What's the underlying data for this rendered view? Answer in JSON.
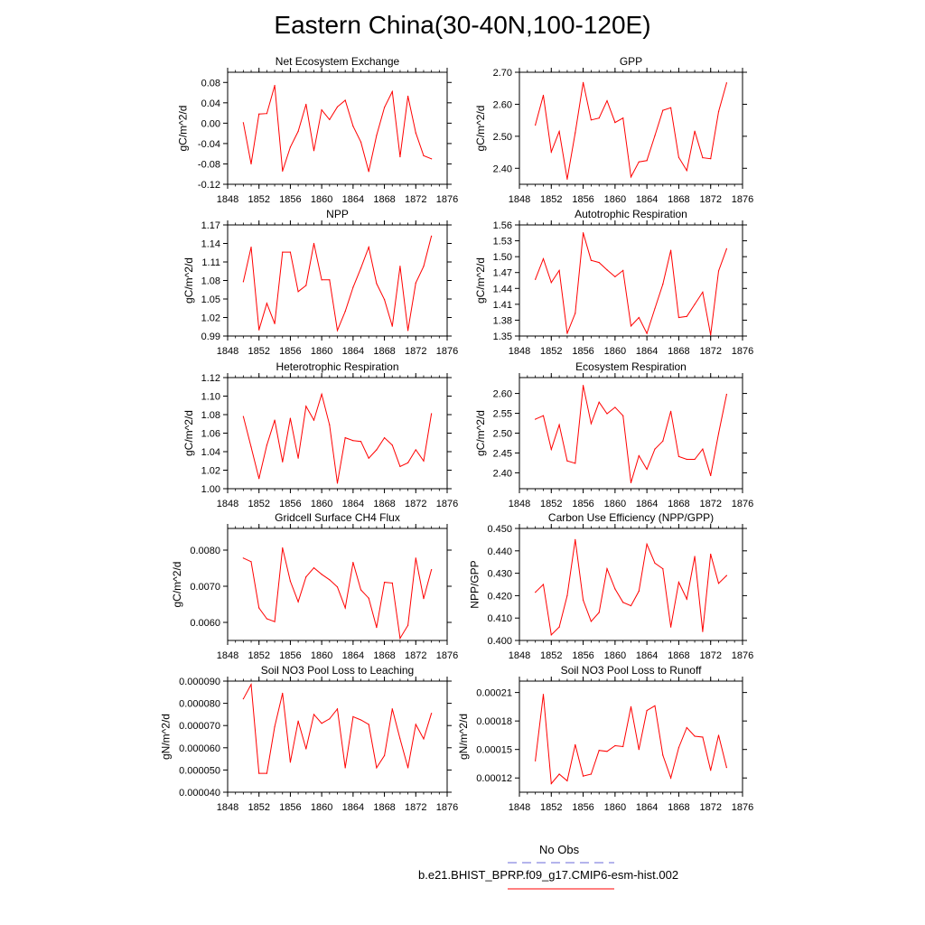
{
  "title": "Eastern China(30-40N,100-120E)",
  "colors": {
    "model": "#ff0000",
    "obs": "#6a6ad8",
    "axis": "#000000"
  },
  "legend": {
    "obs_label": "No Obs",
    "model_label": "b.e21.BHIST_BPRP.f09_g17.CMIP6-esm-hist.002"
  },
  "chart_data": [
    {
      "type": "line",
      "title": "Net Ecosystem Exchange",
      "ylabel": "gC/m^2/d",
      "xlim": [
        1848,
        1876
      ],
      "xticks": [
        "1848",
        "1852",
        "1856",
        "1860",
        "1864",
        "1868",
        "1872",
        "1876"
      ],
      "ylim": [
        -0.12,
        0.1
      ],
      "yticks": [
        "-0.12",
        "-0.08",
        "-0.04",
        "0.00",
        "0.04",
        "0.08"
      ],
      "ytick_values": [
        -0.12,
        -0.08,
        -0.04,
        0,
        0.04,
        0.08
      ],
      "x": [
        1850,
        1851,
        1852,
        1853,
        1854,
        1855,
        1856,
        1857,
        1858,
        1859,
        1860,
        1861,
        1862,
        1863,
        1864,
        1865,
        1866,
        1867,
        1868,
        1869,
        1870,
        1871,
        1872,
        1873,
        1874
      ],
      "values": [
        0.001,
        -0.08,
        0.018,
        0.019,
        0.074,
        -0.094,
        -0.047,
        -0.016,
        0.037,
        -0.054,
        0.026,
        0.007,
        0.032,
        0.045,
        -0.006,
        -0.037,
        -0.095,
        -0.024,
        0.031,
        0.062,
        -0.066,
        0.053,
        -0.019,
        -0.064,
        -0.07
      ]
    },
    {
      "type": "line",
      "title": "GPP",
      "ylabel": "gC/m^2/d",
      "xlim": [
        1848,
        1876
      ],
      "xticks": [
        "1848",
        "1852",
        "1856",
        "1860",
        "1864",
        "1868",
        "1872",
        "1876"
      ],
      "ylim": [
        2.35,
        2.7
      ],
      "yticks": [
        "2.40",
        "2.50",
        "2.60",
        "2.70"
      ],
      "ytick_values": [
        2.4,
        2.5,
        2.6,
        2.7
      ],
      "x": [
        1850,
        1851,
        1852,
        1853,
        1854,
        1855,
        1856,
        1857,
        1858,
        1859,
        1860,
        1861,
        1862,
        1863,
        1864,
        1865,
        1866,
        1867,
        1868,
        1869,
        1870,
        1871,
        1872,
        1873,
        1874
      ],
      "values": [
        2.535,
        2.628,
        2.451,
        2.515,
        2.366,
        2.511,
        2.668,
        2.551,
        2.557,
        2.611,
        2.543,
        2.557,
        2.373,
        2.42,
        2.424,
        2.502,
        2.581,
        2.589,
        2.434,
        2.393,
        2.516,
        2.433,
        2.43,
        2.577,
        2.667
      ]
    },
    {
      "type": "line",
      "title": "NPP",
      "ylabel": "gC/m^2/d",
      "xlim": [
        1848,
        1876
      ],
      "xticks": [
        "1848",
        "1852",
        "1856",
        "1860",
        "1864",
        "1868",
        "1872",
        "1876"
      ],
      "ylim": [
        0.99,
        1.17
      ],
      "yticks": [
        "0.99",
        "1.02",
        "1.05",
        "1.08",
        "1.11",
        "1.14",
        "1.17"
      ],
      "ytick_values": [
        0.99,
        1.02,
        1.05,
        1.08,
        1.11,
        1.14,
        1.17
      ],
      "x": [
        1850,
        1851,
        1852,
        1853,
        1854,
        1855,
        1856,
        1857,
        1858,
        1859,
        1860,
        1861,
        1862,
        1863,
        1864,
        1865,
        1866,
        1867,
        1868,
        1869,
        1870,
        1871,
        1872,
        1873,
        1874
      ],
      "values": [
        1.078,
        1.134,
        1.0,
        1.043,
        1.01,
        1.126,
        1.126,
        1.062,
        1.072,
        1.14,
        1.081,
        1.081,
        0.999,
        1.03,
        1.069,
        1.1,
        1.134,
        1.075,
        1.049,
        1.006,
        1.103,
        0.999,
        1.076,
        1.103,
        1.152
      ]
    },
    {
      "type": "line",
      "title": "Autotrophic Respiration",
      "ylabel": "gC/m^2/d",
      "xlim": [
        1848,
        1876
      ],
      "xticks": [
        "1848",
        "1852",
        "1856",
        "1860",
        "1864",
        "1868",
        "1872",
        "1876"
      ],
      "ylim": [
        1.35,
        1.56
      ],
      "yticks": [
        "1.35",
        "1.38",
        "1.41",
        "1.44",
        "1.47",
        "1.50",
        "1.53",
        "1.56"
      ],
      "ytick_values": [
        1.35,
        1.38,
        1.41,
        1.44,
        1.47,
        1.5,
        1.53,
        1.56
      ],
      "x": [
        1850,
        1851,
        1852,
        1853,
        1854,
        1855,
        1856,
        1857,
        1858,
        1859,
        1860,
        1861,
        1862,
        1863,
        1864,
        1865,
        1866,
        1867,
        1868,
        1869,
        1870,
        1871,
        1872,
        1873,
        1874
      ],
      "values": [
        1.457,
        1.496,
        1.451,
        1.474,
        1.355,
        1.393,
        1.545,
        1.493,
        1.489,
        1.475,
        1.462,
        1.474,
        1.369,
        1.385,
        1.355,
        1.402,
        1.448,
        1.512,
        1.385,
        1.387,
        1.41,
        1.433,
        1.352,
        1.473,
        1.515
      ]
    },
    {
      "type": "line",
      "title": "Heterotrophic Respiration",
      "ylabel": "gC/m^2/d",
      "xlim": [
        1848,
        1876
      ],
      "xticks": [
        "1848",
        "1852",
        "1856",
        "1860",
        "1864",
        "1868",
        "1872",
        "1876"
      ],
      "ylim": [
        1.0,
        1.12
      ],
      "yticks": [
        "1.00",
        "1.02",
        "1.04",
        "1.06",
        "1.08",
        "1.10",
        "1.12"
      ],
      "ytick_values": [
        1.0,
        1.02,
        1.04,
        1.06,
        1.08,
        1.1,
        1.12
      ],
      "x": [
        1850,
        1851,
        1852,
        1853,
        1854,
        1855,
        1856,
        1857,
        1858,
        1859,
        1860,
        1861,
        1862,
        1863,
        1864,
        1865,
        1866,
        1867,
        1868,
        1869,
        1870,
        1871,
        1872,
        1873,
        1874
      ],
      "values": [
        1.078,
        1.045,
        1.011,
        1.047,
        1.074,
        1.029,
        1.076,
        1.033,
        1.089,
        1.074,
        1.102,
        1.069,
        1.006,
        1.055,
        1.052,
        1.051,
        1.033,
        1.042,
        1.055,
        1.047,
        1.024,
        1.028,
        1.042,
        1.03,
        1.081
      ]
    },
    {
      "type": "line",
      "title": "Ecosystem Respiration",
      "ylabel": "gC/m^2/d",
      "xlim": [
        1848,
        1876
      ],
      "xticks": [
        "1848",
        "1852",
        "1856",
        "1860",
        "1864",
        "1868",
        "1872",
        "1876"
      ],
      "ylim": [
        2.36,
        2.64
      ],
      "yticks": [
        "2.40",
        "2.45",
        "2.50",
        "2.55",
        "2.60"
      ],
      "ytick_values": [
        2.4,
        2.45,
        2.5,
        2.55,
        2.6
      ],
      "x": [
        1850,
        1851,
        1852,
        1853,
        1854,
        1855,
        1856,
        1857,
        1858,
        1859,
        1860,
        1861,
        1862,
        1863,
        1864,
        1865,
        1866,
        1867,
        1868,
        1869,
        1870,
        1871,
        1872,
        1873,
        1874
      ],
      "values": [
        2.535,
        2.544,
        2.459,
        2.521,
        2.43,
        2.424,
        2.62,
        2.524,
        2.578,
        2.549,
        2.565,
        2.544,
        2.375,
        2.443,
        2.409,
        2.46,
        2.48,
        2.555,
        2.441,
        2.434,
        2.434,
        2.46,
        2.393,
        2.499,
        2.598
      ]
    },
    {
      "type": "line",
      "title": "Gridcell Surface CH4 Flux",
      "ylabel": "gC/m^2/d",
      "xlim": [
        1848,
        1876
      ],
      "xticks": [
        "1848",
        "1852",
        "1856",
        "1860",
        "1864",
        "1868",
        "1872",
        "1876"
      ],
      "ylim": [
        0.0055,
        0.0086
      ],
      "yticks": [
        "0.0060",
        "0.0070",
        "0.0080"
      ],
      "ytick_values": [
        0.006,
        0.007,
        0.008
      ],
      "x": [
        1850,
        1851,
        1852,
        1853,
        1854,
        1855,
        1856,
        1857,
        1858,
        1859,
        1860,
        1861,
        1862,
        1863,
        1864,
        1865,
        1866,
        1867,
        1868,
        1869,
        1870,
        1871,
        1872,
        1873,
        1874
      ],
      "values": [
        0.00778,
        0.00768,
        0.0064,
        0.0061,
        0.00602,
        0.00806,
        0.00714,
        0.00657,
        0.00726,
        0.00751,
        0.00733,
        0.00718,
        0.00698,
        0.0064,
        0.00766,
        0.0069,
        0.00667,
        0.00586,
        0.00711,
        0.00709,
        0.00556,
        0.00592,
        0.00778,
        0.00666,
        0.00746
      ]
    },
    {
      "type": "line",
      "title": "Carbon Use Efficiency (NPP/GPP)",
      "ylabel": "NPP/GPP",
      "xlim": [
        1848,
        1876
      ],
      "xticks": [
        "1848",
        "1852",
        "1856",
        "1860",
        "1864",
        "1868",
        "1872",
        "1876"
      ],
      "ylim": [
        0.4,
        0.45
      ],
      "yticks": [
        "0.400",
        "0.410",
        "0.420",
        "0.430",
        "0.440",
        "0.450"
      ],
      "ytick_values": [
        0.4,
        0.41,
        0.42,
        0.43,
        0.44,
        0.45
      ],
      "x": [
        1850,
        1851,
        1852,
        1853,
        1854,
        1855,
        1856,
        1857,
        1858,
        1859,
        1860,
        1861,
        1862,
        1863,
        1864,
        1865,
        1866,
        1867,
        1868,
        1869,
        1870,
        1871,
        1872,
        1873,
        1874
      ],
      "values": [
        0.4215,
        0.425,
        0.4025,
        0.406,
        0.42,
        0.445,
        0.418,
        0.4085,
        0.4125,
        0.432,
        0.423,
        0.417,
        0.4155,
        0.422,
        0.443,
        0.4345,
        0.432,
        0.406,
        0.426,
        0.4185,
        0.4375,
        0.404,
        0.4385,
        0.4255,
        0.429
      ]
    },
    {
      "type": "line",
      "title": "Soil NO3 Pool Loss to Leaching",
      "ylabel": "gN/m^2/d",
      "xlim": [
        1848,
        1876
      ],
      "xticks": [
        "1848",
        "1852",
        "1856",
        "1860",
        "1864",
        "1868",
        "1872",
        "1876"
      ],
      "ylim": [
        4e-05,
        9e-05
      ],
      "yticks": [
        "0.000040",
        "0.000050",
        "0.000060",
        "0.000070",
        "0.000080",
        "0.000090"
      ],
      "ytick_values": [
        4e-05,
        5e-05,
        6e-05,
        7e-05,
        8e-05,
        9e-05
      ],
      "x": [
        1850,
        1851,
        1852,
        1853,
        1854,
        1855,
        1856,
        1857,
        1858,
        1859,
        1860,
        1861,
        1862,
        1863,
        1864,
        1865,
        1866,
        1867,
        1868,
        1869,
        1870,
        1871,
        1872,
        1873,
        1874
      ],
      "values": [
        8.2e-05,
        8.85e-05,
        4.85e-05,
        4.85e-05,
        6.95e-05,
        8.45e-05,
        5.35e-05,
        7.2e-05,
        5.95e-05,
        7.5e-05,
        7.1e-05,
        7.3e-05,
        7.75e-05,
        5.1e-05,
        7.4e-05,
        7.25e-05,
        7.05e-05,
        5.1e-05,
        5.65e-05,
        7.75e-05,
        6.4e-05,
        5.1e-05,
        7.05e-05,
        6.4e-05,
        7.55e-05
      ]
    },
    {
      "type": "line",
      "title": "Soil NO3 Pool Loss to Runoff",
      "ylabel": "gN/m^2/d",
      "xlim": [
        1848,
        1876
      ],
      "xticks": [
        "1848",
        "1852",
        "1856",
        "1860",
        "1864",
        "1868",
        "1872",
        "1876"
      ],
      "ylim": [
        0.000105,
        0.000222
      ],
      "yticks": [
        "0.00012",
        "0.00015",
        "0.00018",
        "0.00021"
      ],
      "ytick_values": [
        0.00012,
        0.00015,
        0.00018,
        0.00021
      ],
      "x": [
        1850,
        1851,
        1852,
        1853,
        1854,
        1855,
        1856,
        1857,
        1858,
        1859,
        1860,
        1861,
        1862,
        1863,
        1864,
        1865,
        1866,
        1867,
        1868,
        1869,
        1870,
        1871,
        1872,
        1873,
        1874
      ],
      "values": [
        0.000138,
        0.000208,
        0.000114,
        0.000124,
        0.000117,
        0.000155,
        0.000122,
        0.000124,
        0.000149,
        0.000148,
        0.000154,
        0.000153,
        0.000195,
        0.00015,
        0.000191,
        0.000196,
        0.000144,
        0.00012,
        0.000152,
        0.000173,
        0.000164,
        0.000163,
        0.000128,
        0.000165,
        0.000131
      ]
    }
  ]
}
